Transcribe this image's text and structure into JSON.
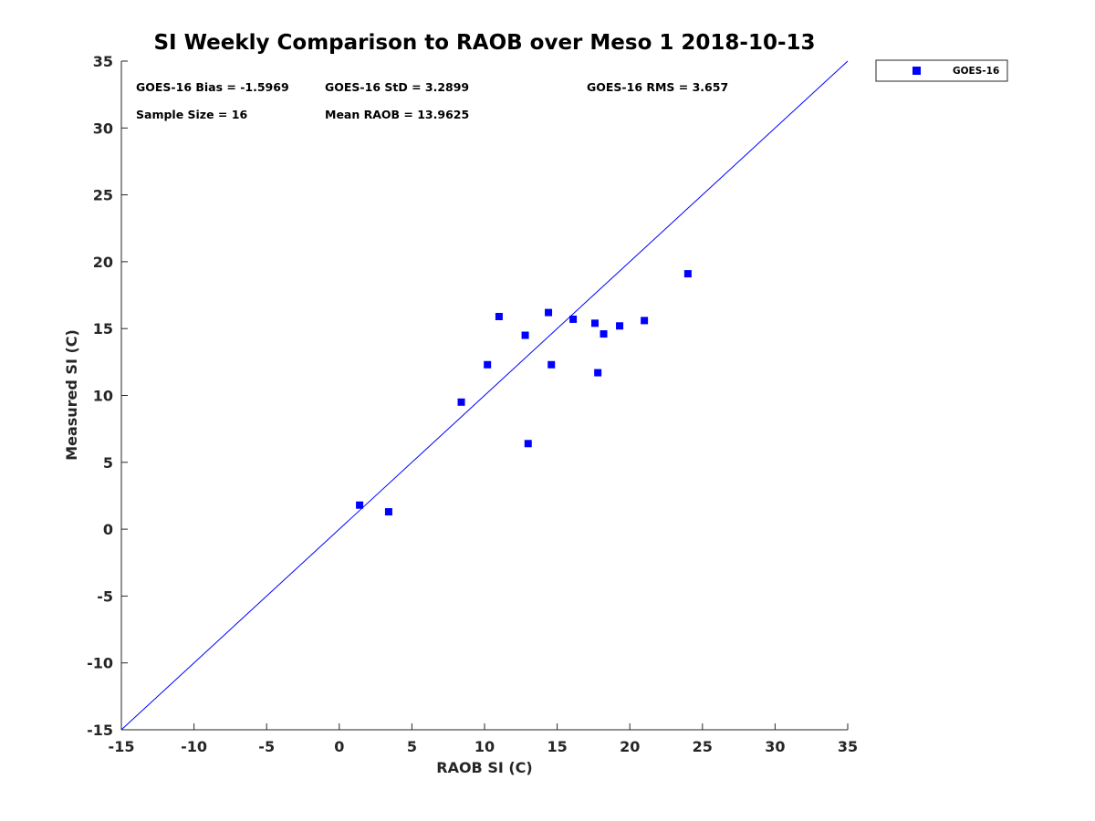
{
  "chart_data": {
    "type": "scatter",
    "title": "SI Weekly Comparison to RAOB over Meso 1 2018-10-13",
    "xlabel": "RAOB SI (C)",
    "ylabel": "Measured SI (C)",
    "xlim": [
      -15,
      35
    ],
    "ylim": [
      -15,
      35
    ],
    "x_ticks": [
      "-15",
      "-10",
      "-5",
      "0",
      "5",
      "10",
      "15",
      "20",
      "25",
      "30",
      "35"
    ],
    "y_ticks": [
      "-15",
      "-10",
      "-5",
      "0",
      "5",
      "10",
      "15",
      "20",
      "25",
      "30",
      "35"
    ],
    "grid": false,
    "legend_position": "outside top-right",
    "reference_line": {
      "name": "1:1 line",
      "from": [
        -15,
        -15
      ],
      "to": [
        35,
        35
      ],
      "color": "#0000ff"
    },
    "series": [
      {
        "name": "GOES-16",
        "marker": "square",
        "color": "#0000ff",
        "points": [
          {
            "x": 1.4,
            "y": 1.8
          },
          {
            "x": 3.4,
            "y": 1.3
          },
          {
            "x": 8.4,
            "y": 9.5
          },
          {
            "x": 10.2,
            "y": 12.3
          },
          {
            "x": 11.0,
            "y": 15.9
          },
          {
            "x": 12.8,
            "y": 14.5
          },
          {
            "x": 13.0,
            "y": 6.4
          },
          {
            "x": 14.4,
            "y": 16.2
          },
          {
            "x": 14.6,
            "y": 12.3
          },
          {
            "x": 16.1,
            "y": 15.7
          },
          {
            "x": 17.6,
            "y": 15.4
          },
          {
            "x": 17.8,
            "y": 11.7
          },
          {
            "x": 18.2,
            "y": 14.6
          },
          {
            "x": 19.3,
            "y": 15.2
          },
          {
            "x": 21.0,
            "y": 15.6
          },
          {
            "x": 24.0,
            "y": 19.1
          }
        ]
      }
    ],
    "annotations": [
      {
        "id": "bias",
        "text": "GOES-16 Bias = -1.5969"
      },
      {
        "id": "std",
        "text": "GOES-16 StD = 3.2899"
      },
      {
        "id": "rms",
        "text": "GOES-16 RMS = 3.657"
      },
      {
        "id": "sample",
        "text": "Sample Size = 16"
      },
      {
        "id": "mean",
        "text": "Mean RAOB = 13.9625"
      }
    ]
  }
}
